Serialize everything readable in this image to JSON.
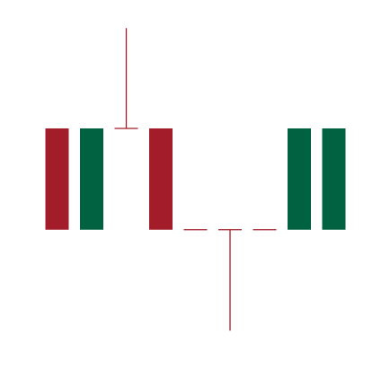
{
  "chart_data": {
    "type": "candlestick",
    "title": "",
    "xlabel": "",
    "ylabel": "",
    "ylim": [
      0,
      100
    ],
    "grid": false,
    "legend": "none",
    "colors": {
      "up": "#006241",
      "down": "#A21C29",
      "background": "#FFFFFF"
    },
    "candles": [
      {
        "open": 68.5,
        "high": 68.5,
        "low": 37.6,
        "close": 37.6,
        "direction": "down"
      },
      {
        "open": 37.6,
        "high": 68.5,
        "low": 37.6,
        "close": 68.5,
        "direction": "up"
      },
      {
        "open": 68.5,
        "high": 99.1,
        "low": 68.5,
        "close": 68.5,
        "direction": "doji"
      },
      {
        "open": 68.5,
        "high": 68.5,
        "low": 37.6,
        "close": 37.6,
        "direction": "down"
      },
      {
        "open": 37.6,
        "high": 37.6,
        "low": 37.6,
        "close": 37.6,
        "direction": "doji"
      },
      {
        "open": 37.6,
        "high": 37.6,
        "low": 6.8,
        "close": 37.6,
        "direction": "doji"
      },
      {
        "open": 37.6,
        "high": 37.6,
        "low": 37.6,
        "close": 37.6,
        "direction": "doji"
      },
      {
        "open": 37.6,
        "high": 68.5,
        "low": 37.6,
        "close": 68.5,
        "direction": "up"
      },
      {
        "open": 37.6,
        "high": 68.5,
        "low": 37.6,
        "close": 68.5,
        "direction": "up"
      }
    ]
  }
}
